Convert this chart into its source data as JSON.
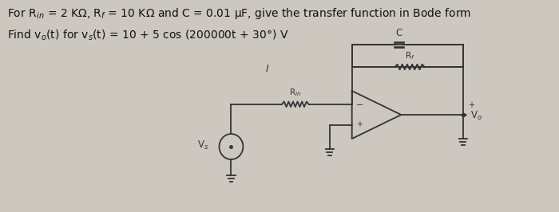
{
  "bg_color": "#ccc8c0",
  "text_line1": "For R$_{in}$ = 2 KΩ, R$_f$ = 10 KΩ and C = 0.01 μF, give the transfer function in Bode form",
  "text_line2": "Find v$_o$(t) for v$_s$(t) = 10 + 5 cos (200000t + 30°) V",
  "text_color": "#111111",
  "font_size_text": 10.0,
  "circuit_color": "#333333",
  "label_I": "I",
  "label_Rin": "R$_{in}$",
  "label_Rf": "R$_f$",
  "label_C": "C",
  "label_Vs": "V$_s$",
  "label_Vo": "V$_o$",
  "lw": 1.3
}
